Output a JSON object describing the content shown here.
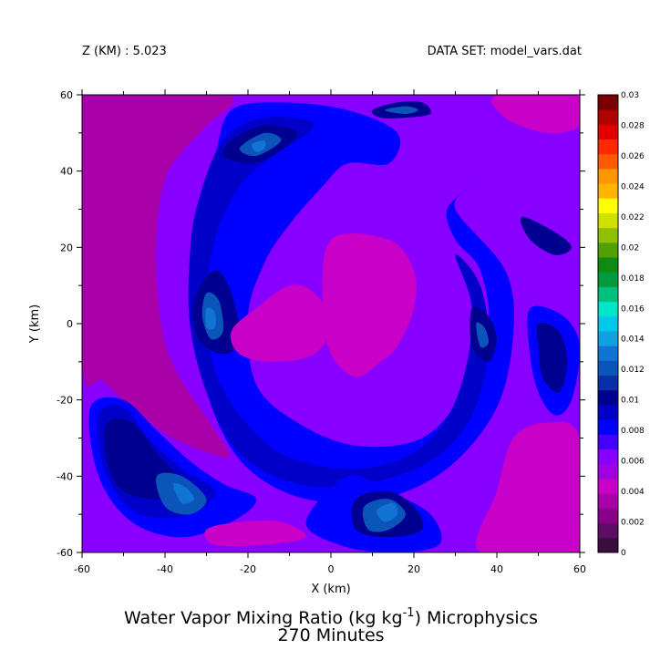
{
  "header": {
    "left_label": "Z (KM) : 5.023",
    "right_label": "DATA SET: model_vars.dat"
  },
  "footer": {
    "title_main": "Water Vapor Mixing Ratio (kg kg",
    "title_exp": "-1",
    "title_tail": ") Microphysics",
    "subtitle": "270 Minutes"
  },
  "chart_data": {
    "type": "heatmap",
    "xlabel": "X (km)",
    "ylabel": "Y (km)",
    "xlim": [
      -60,
      60
    ],
    "ylim": [
      -60,
      60
    ],
    "x_ticks": [
      -60,
      -40,
      -20,
      0,
      20,
      40,
      60
    ],
    "y_ticks": [
      -60,
      -40,
      -20,
      0,
      20,
      40,
      60
    ],
    "grid": false,
    "legend": "right colorbar",
    "colorbar": {
      "labels": [
        "0",
        "0.002",
        "0.004",
        "0.006",
        "0.008",
        "0.01",
        "0.012",
        "0.014",
        "0.016",
        "0.018",
        "0.02",
        "0.022",
        "0.024",
        "0.026",
        "0.028",
        "0.03"
      ],
      "colors": [
        "#3a0d3f",
        "#5d0d63",
        "#880088",
        "#aa00aa",
        "#c800c8",
        "#a000e0",
        "#8800ff",
        "#4400ff",
        "#0000ff",
        "#0000c8",
        "#000090",
        "#0a2ea8",
        "#0c55b8",
        "#1173d4",
        "#11a0e0",
        "#00c8e8",
        "#00e6c8",
        "#00c080",
        "#009a40",
        "#108a10",
        "#50a000",
        "#90c000",
        "#d0e000",
        "#ffff00",
        "#ffb400",
        "#ff9600",
        "#ff5a00",
        "#ff2800",
        "#e00000",
        "#b00000",
        "#780000"
      ]
    },
    "contours": [
      {
        "fill": "#aa00aa",
        "points": [
          [
            -60,
            60
          ],
          [
            -25,
            60
          ],
          [
            -30,
            52
          ],
          [
            -36,
            45
          ],
          [
            -40,
            38
          ],
          [
            -42,
            25
          ],
          [
            -42,
            10
          ],
          [
            -40,
            -5
          ],
          [
            -36,
            -15
          ],
          [
            -28,
            -28
          ],
          [
            -25,
            -35
          ],
          [
            -38,
            -30
          ],
          [
            -48,
            -22
          ],
          [
            -55,
            -15
          ],
          [
            -60,
            -10
          ]
        ]
      },
      {
        "fill": "#8800ff",
        "points": [
          [
            -22,
            58
          ],
          [
            -10,
            60
          ],
          [
            12,
            58
          ],
          [
            25,
            54
          ],
          [
            30,
            44
          ],
          [
            26,
            36
          ],
          [
            14,
            36
          ],
          [
            2,
            38
          ],
          [
            -6,
            32
          ],
          [
            -14,
            24
          ],
          [
            -18,
            12
          ],
          [
            -16,
            -4
          ],
          [
            -8,
            -20
          ],
          [
            4,
            -26
          ],
          [
            20,
            -24
          ],
          [
            30,
            -14
          ],
          [
            34,
            0
          ],
          [
            30,
            14
          ],
          [
            24,
            22
          ],
          [
            20,
            30
          ],
          [
            26,
            40
          ],
          [
            20,
            50
          ],
          [
            6,
            54
          ],
          [
            -12,
            54
          ]
        ]
      },
      {
        "fill": "#0000ff",
        "points": [
          [
            -24,
            56
          ],
          [
            -12,
            58
          ],
          [
            4,
            56
          ],
          [
            16,
            50
          ],
          [
            14,
            42
          ],
          [
            4,
            42
          ],
          [
            -2,
            36
          ],
          [
            -10,
            26
          ],
          [
            -16,
            16
          ],
          [
            -20,
            2
          ],
          [
            -18,
            -16
          ],
          [
            -8,
            -26
          ],
          [
            6,
            -32
          ],
          [
            22,
            -30
          ],
          [
            32,
            -18
          ],
          [
            38,
            -2
          ],
          [
            36,
            14
          ],
          [
            30,
            22
          ],
          [
            28,
            30
          ],
          [
            34,
            36
          ],
          [
            30,
            30
          ],
          [
            42,
            14
          ],
          [
            44,
            -2
          ],
          [
            40,
            -22
          ],
          [
            28,
            -38
          ],
          [
            12,
            -46
          ],
          [
            -6,
            -46
          ],
          [
            -20,
            -38
          ],
          [
            -28,
            -24
          ],
          [
            -32,
            -6
          ],
          [
            -34,
            12
          ],
          [
            -32,
            30
          ],
          [
            -28,
            44
          ]
        ]
      },
      {
        "fill": "#0000c8",
        "points": [
          [
            -26,
            48
          ],
          [
            -16,
            54
          ],
          [
            -4,
            52
          ],
          [
            -14,
            44
          ],
          [
            -22,
            36
          ],
          [
            -28,
            22
          ],
          [
            -30,
            4
          ],
          [
            -28,
            -12
          ],
          [
            -22,
            -24
          ],
          [
            -12,
            -34
          ],
          [
            2,
            -38
          ],
          [
            16,
            -36
          ],
          [
            26,
            -28
          ],
          [
            32,
            -14
          ],
          [
            34,
            4
          ],
          [
            30,
            18
          ],
          [
            36,
            10
          ],
          [
            38,
            -6
          ],
          [
            34,
            -24
          ],
          [
            24,
            -36
          ],
          [
            8,
            -42
          ],
          [
            -8,
            -42
          ],
          [
            -22,
            -34
          ],
          [
            -30,
            -18
          ],
          [
            -34,
            0
          ],
          [
            -34,
            18
          ],
          [
            -32,
            32
          ]
        ]
      },
      {
        "fill": "#0000ff",
        "points": [
          [
            -58,
            -22
          ],
          [
            -50,
            -20
          ],
          [
            -42,
            -28
          ],
          [
            -34,
            -36
          ],
          [
            -26,
            -42
          ],
          [
            -18,
            -46
          ],
          [
            -24,
            -52
          ],
          [
            -36,
            -56
          ],
          [
            -48,
            -52
          ],
          [
            -56,
            -40
          ]
        ]
      },
      {
        "fill": "#0000c8",
        "points": [
          [
            -56,
            -24
          ],
          [
            -50,
            -22
          ],
          [
            -44,
            -30
          ],
          [
            -36,
            -38
          ],
          [
            -28,
            -44
          ],
          [
            -34,
            -50
          ],
          [
            -46,
            -50
          ],
          [
            -54,
            -40
          ]
        ]
      },
      {
        "fill": "#000090",
        "points": [
          [
            -54,
            -26
          ],
          [
            -48,
            -26
          ],
          [
            -42,
            -34
          ],
          [
            -36,
            -42
          ],
          [
            -40,
            -46
          ],
          [
            -50,
            -44
          ],
          [
            -54,
            -36
          ]
        ]
      },
      {
        "fill": "#0c55b8",
        "points": [
          [
            -42,
            -40
          ],
          [
            -36,
            -40
          ],
          [
            -30,
            -46
          ],
          [
            -34,
            -50
          ],
          [
            -40,
            -48
          ]
        ]
      },
      {
        "fill": "#1173d4",
        "points": [
          [
            -38,
            -42
          ],
          [
            -35,
            -43
          ],
          [
            -33,
            -46
          ],
          [
            -36,
            -47
          ]
        ]
      },
      {
        "fill": "#0000ff",
        "points": [
          [
            4,
            -40
          ],
          [
            14,
            -44
          ],
          [
            24,
            -50
          ],
          [
            26,
            -58
          ],
          [
            14,
            -60
          ],
          [
            2,
            -58
          ],
          [
            -6,
            -52
          ]
        ]
      },
      {
        "fill": "#000090",
        "points": [
          [
            6,
            -46
          ],
          [
            14,
            -44
          ],
          [
            20,
            -48
          ],
          [
            22,
            -54
          ],
          [
            14,
            -56
          ],
          [
            6,
            -54
          ]
        ]
      },
      {
        "fill": "#0c55b8",
        "points": [
          [
            8,
            -48
          ],
          [
            14,
            -46
          ],
          [
            18,
            -50
          ],
          [
            14,
            -54
          ],
          [
            9,
            -54
          ]
        ]
      },
      {
        "fill": "#1173d4",
        "points": [
          [
            11,
            -49
          ],
          [
            15,
            -47
          ],
          [
            16,
            -50
          ],
          [
            13,
            -52
          ]
        ]
      },
      {
        "fill": "#000090",
        "points": [
          [
            -28,
            14
          ],
          [
            -24,
            8
          ],
          [
            -22,
            -4
          ],
          [
            -26,
            -8
          ],
          [
            -32,
            -4
          ],
          [
            -33,
            6
          ]
        ]
      },
      {
        "fill": "#0c55b8",
        "points": [
          [
            -30,
            8
          ],
          [
            -27,
            6
          ],
          [
            -26,
            -2
          ],
          [
            -29,
            -4
          ],
          [
            -31,
            2
          ]
        ]
      },
      {
        "fill": "#1173d4",
        "points": [
          [
            -30,
            4
          ],
          [
            -28,
            3
          ],
          [
            -28,
            -1
          ],
          [
            -30,
            -1
          ]
        ]
      },
      {
        "fill": "#000090",
        "points": [
          [
            -24,
            48
          ],
          [
            -16,
            52
          ],
          [
            -8,
            50
          ],
          [
            -14,
            44
          ],
          [
            -20,
            42
          ],
          [
            -26,
            44
          ]
        ]
      },
      {
        "fill": "#0c55b8",
        "points": [
          [
            -22,
            46
          ],
          [
            -16,
            50
          ],
          [
            -12,
            48
          ],
          [
            -18,
            44
          ]
        ]
      },
      {
        "fill": "#1173d4",
        "points": [
          [
            -19,
            47
          ],
          [
            -16,
            48
          ],
          [
            -16,
            46
          ],
          [
            -18,
            45
          ]
        ]
      },
      {
        "fill": "#000090",
        "points": [
          [
            10,
            56
          ],
          [
            16,
            58
          ],
          [
            22,
            58
          ],
          [
            24,
            55
          ],
          [
            18,
            54
          ],
          [
            12,
            54
          ]
        ]
      },
      {
        "fill": "#0c55b8",
        "points": [
          [
            13,
            56
          ],
          [
            18,
            57
          ],
          [
            21,
            56
          ],
          [
            18,
            55
          ]
        ]
      },
      {
        "fill": "#000090",
        "points": [
          [
            34,
            4
          ],
          [
            38,
            2
          ],
          [
            40,
            -4
          ],
          [
            38,
            -10
          ],
          [
            34,
            -6
          ]
        ]
      },
      {
        "fill": "#0c55b8",
        "points": [
          [
            35,
            0
          ],
          [
            37,
            -1
          ],
          [
            38,
            -5
          ],
          [
            36,
            -6
          ]
        ]
      },
      {
        "fill": "#0000ff",
        "points": [
          [
            48,
            4
          ],
          [
            56,
            2
          ],
          [
            60,
            -6
          ],
          [
            58,
            -20
          ],
          [
            54,
            -24
          ],
          [
            50,
            -18
          ],
          [
            48,
            -8
          ]
        ]
      },
      {
        "fill": "#000090",
        "points": [
          [
            50,
            0
          ],
          [
            55,
            -2
          ],
          [
            57,
            -10
          ],
          [
            55,
            -18
          ],
          [
            51,
            -14
          ],
          [
            50,
            -6
          ]
        ]
      },
      {
        "fill": "#000090",
        "points": [
          [
            46,
            28
          ],
          [
            54,
            24
          ],
          [
            58,
            20
          ],
          [
            54,
            18
          ],
          [
            48,
            22
          ]
        ]
      },
      {
        "fill": "#c800c8",
        "points": [
          [
            -10,
            10
          ],
          [
            -4,
            8
          ],
          [
            0,
            0
          ],
          [
            -4,
            -8
          ],
          [
            -14,
            -10
          ],
          [
            -22,
            -8
          ],
          [
            -24,
            -2
          ],
          [
            -18,
            4
          ]
        ]
      },
      {
        "fill": "#c800c8",
        "points": [
          [
            0,
            22
          ],
          [
            14,
            22
          ],
          [
            20,
            14
          ],
          [
            20,
            4
          ],
          [
            16,
            -6
          ],
          [
            12,
            -10
          ],
          [
            6,
            -14
          ],
          [
            0,
            -8
          ],
          [
            -2,
            4
          ]
        ]
      },
      {
        "fill": "#c800c8",
        "points": [
          [
            40,
            60
          ],
          [
            60,
            60
          ],
          [
            60,
            52
          ],
          [
            52,
            50
          ],
          [
            42,
            54
          ]
        ]
      },
      {
        "fill": "#c800c8",
        "points": [
          [
            44,
            -30
          ],
          [
            52,
            -26
          ],
          [
            60,
            -30
          ],
          [
            60,
            -60
          ],
          [
            36,
            -60
          ],
          [
            40,
            -44
          ]
        ]
      },
      {
        "fill": "#c800c8",
        "points": [
          [
            -30,
            -54
          ],
          [
            -22,
            -52
          ],
          [
            -12,
            -52
          ],
          [
            -6,
            -56
          ],
          [
            -16,
            -58
          ],
          [
            -28,
            -58
          ]
        ]
      }
    ]
  }
}
